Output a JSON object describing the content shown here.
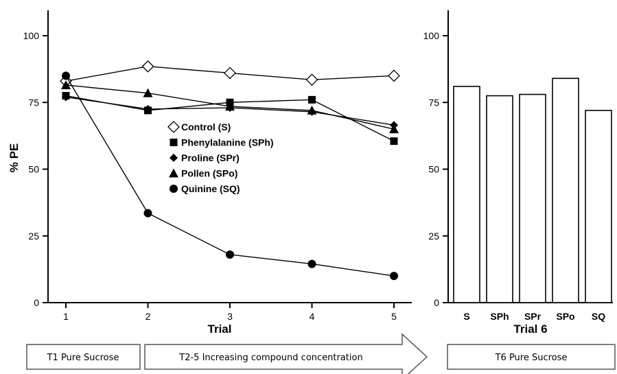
{
  "chart_data": [
    {
      "type": "line",
      "title": "",
      "xlabel": "Trial",
      "ylabel": "% PE",
      "x": [
        1,
        2,
        3,
        4,
        5
      ],
      "ylim": [
        0,
        100
      ],
      "yticks": [
        0,
        25,
        50,
        75,
        100
      ],
      "grid": false,
      "legend_position": "center",
      "series": [
        {
          "name": "Control (S)",
          "marker": "diamond-open",
          "values": [
            83,
            88.5,
            86,
            83.5,
            85
          ]
        },
        {
          "name": "Phenylalanine (SPh)",
          "marker": "square",
          "values": [
            77.5,
            72,
            75,
            76,
            60.5
          ]
        },
        {
          "name": "Proline (SPr)",
          "marker": "diamond",
          "values": [
            77,
            72.5,
            73,
            71.5,
            66.5
          ]
        },
        {
          "name": "Pollen (SPo)",
          "marker": "triangle",
          "values": [
            81.5,
            78.5,
            73.5,
            72,
            65
          ]
        },
        {
          "name": "Quinine (SQ)",
          "marker": "circle",
          "values": [
            85,
            33.5,
            18,
            14.5,
            10
          ]
        }
      ]
    },
    {
      "type": "bar",
      "title": "",
      "xlabel": "Trial 6",
      "ylabel": "",
      "categories": [
        "S",
        "SPh",
        "SPr",
        "SPo",
        "SQ"
      ],
      "values": [
        81,
        77.5,
        78,
        84,
        72
      ],
      "ylim": [
        0,
        100
      ],
      "yticks": [
        0,
        25,
        50,
        75,
        100
      ],
      "grid": false
    }
  ],
  "stages": {
    "t1": "T1 Pure Sucrose",
    "t2_5": "T2-5 Increasing compound concentration",
    "t6": "T6 Pure Sucrose"
  }
}
